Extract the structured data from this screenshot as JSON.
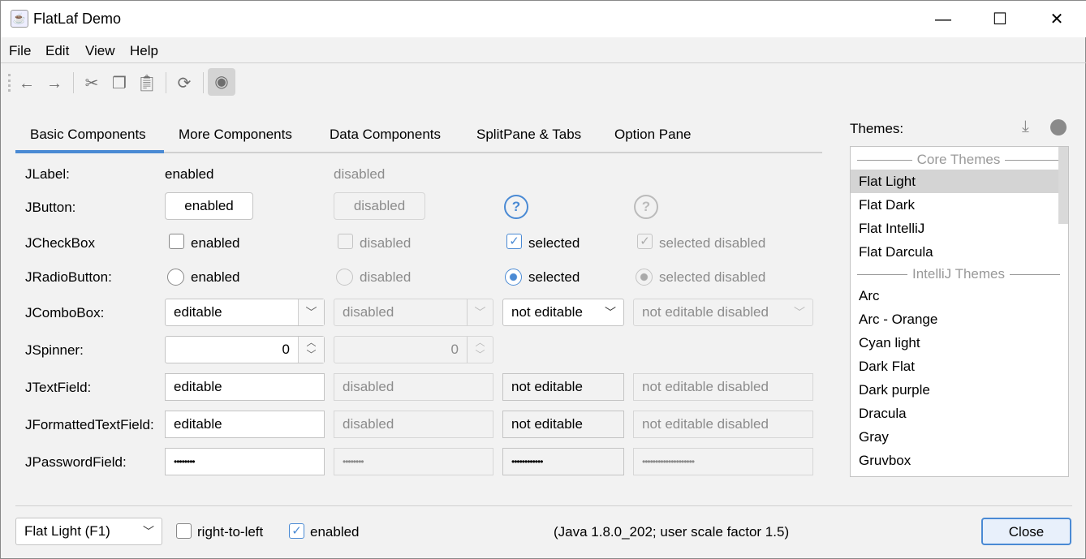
{
  "window": {
    "title": "FlatLaf Demo",
    "minimize": "—",
    "maximize": "☐",
    "close": "✕"
  },
  "menu": [
    "File",
    "Edit",
    "View",
    "Help"
  ],
  "toolbar": [
    "back-icon",
    "forward-icon",
    "cut-icon",
    "copy-icon",
    "paste-icon",
    "refresh-icon",
    "eye-icon"
  ],
  "tabs": [
    "Basic Components",
    "More Components",
    "Data Components",
    "SplitPane & Tabs",
    "Option Pane"
  ],
  "rows": {
    "label": {
      "name": "JLabel:",
      "enabled": "enabled",
      "disabled": "disabled"
    },
    "button": {
      "name": "JButton:",
      "enabled": "enabled",
      "disabled": "disabled",
      "help": "?"
    },
    "checkbox": {
      "name": "JCheckBox",
      "enabled": "enabled",
      "disabled": "disabled",
      "selected": "selected",
      "selected_disabled": "selected disabled"
    },
    "radio": {
      "name": "JRadioButton:",
      "enabled": "enabled",
      "disabled": "disabled",
      "selected": "selected",
      "selected_disabled": "selected disabled"
    },
    "combo": {
      "name": "JComboBox:",
      "editable": "editable",
      "disabled": "disabled",
      "not_editable": "not editable",
      "not_editable_disabled": "not editable disabled"
    },
    "spinner": {
      "name": "JSpinner:",
      "value": "0",
      "disabled_value": "0"
    },
    "textfield": {
      "name": "JTextField:",
      "editable": "editable",
      "disabled": "disabled",
      "not_editable": "not editable",
      "not_editable_disabled": "not editable disabled"
    },
    "formatted": {
      "name": "JFormattedTextField:",
      "editable": "editable",
      "disabled": "disabled",
      "not_editable": "not editable",
      "not_editable_disabled": "not editable disabled"
    },
    "password": {
      "name": "JPasswordField:",
      "v1": "••••••••",
      "v2": "••••••••",
      "v3": "••••••••••••",
      "v4": "••••••••••••••••••••"
    }
  },
  "themes": {
    "label": "Themes:",
    "header_core": "Core Themes",
    "header_intellij": "IntelliJ Themes",
    "core": [
      "Flat Light",
      "Flat Dark",
      "Flat IntelliJ",
      "Flat Darcula"
    ],
    "intellij": [
      "Arc",
      "Arc - Orange",
      "Cyan light",
      "Dark Flat",
      "Dark purple",
      "Dracula",
      "Gray",
      "Gruvbox"
    ],
    "selected": "Flat Light"
  },
  "footer": {
    "laf": "Flat Light (F1)",
    "rtl": "right-to-left",
    "enabled": "enabled",
    "info": "(Java 1.8.0_202;  user scale factor 1.5)",
    "close": "Close"
  },
  "colors": {
    "accent": "#4a8ad4"
  }
}
